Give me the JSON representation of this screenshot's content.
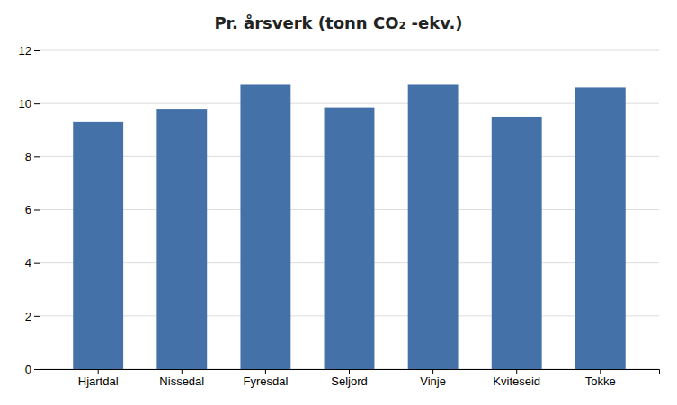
{
  "chart_data": {
    "type": "bar",
    "title": "Pr. årsverk (tonn CO₂ -ekv.)",
    "categories": [
      "Hjartdal",
      "Nissedal",
      "Fyresdal",
      "Seljord",
      "Vinje",
      "Kviteseid",
      "Tokke"
    ],
    "values": [
      9.3,
      9.8,
      10.7,
      9.85,
      10.7,
      9.5,
      10.6
    ],
    "color": "#4472a8",
    "ylim": [
      0,
      12
    ],
    "yticks": [
      0,
      2,
      4,
      6,
      8,
      10,
      12
    ],
    "grid": true
  }
}
